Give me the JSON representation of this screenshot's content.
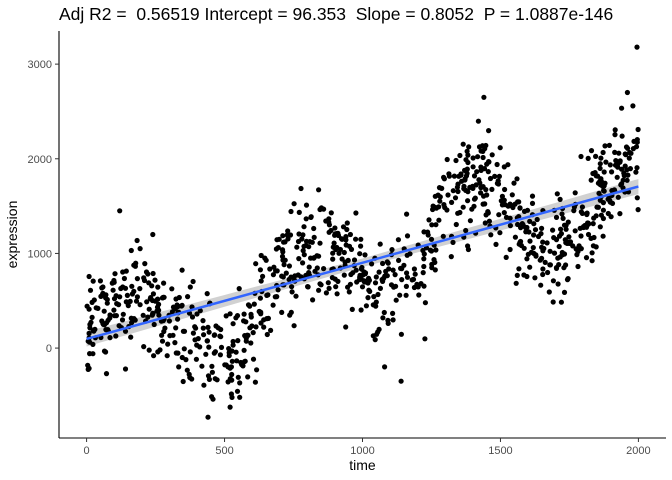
{
  "chart_data": {
    "type": "scatter",
    "title": "Adj R2 =  0.56519 Intercept = 96.353  Slope = 0.8052  P = 1.0887e-146",
    "xlabel": "time",
    "ylabel": "expression",
    "xlim": [
      -100,
      2100
    ],
    "ylim": [
      -950,
      3350
    ],
    "xticks": [
      0,
      500,
      1000,
      1500,
      2000
    ],
    "xtick_labels": [
      "0",
      "500",
      "1000",
      "1500",
      "2000"
    ],
    "yticks": [
      0,
      1000,
      2000,
      3000
    ],
    "ytick_labels": [
      "0",
      "1000",
      "2000",
      "3000"
    ],
    "grid": false,
    "point_color": "#000000",
    "fit_line": {
      "intercept": 96.353,
      "slope": 0.8052,
      "x_range": [
        0,
        2000
      ],
      "color": "#3366ff",
      "band_color": "#b3b3b3"
    },
    "points_note": "approximate reconstruction of scatter cloud",
    "points": []
  }
}
